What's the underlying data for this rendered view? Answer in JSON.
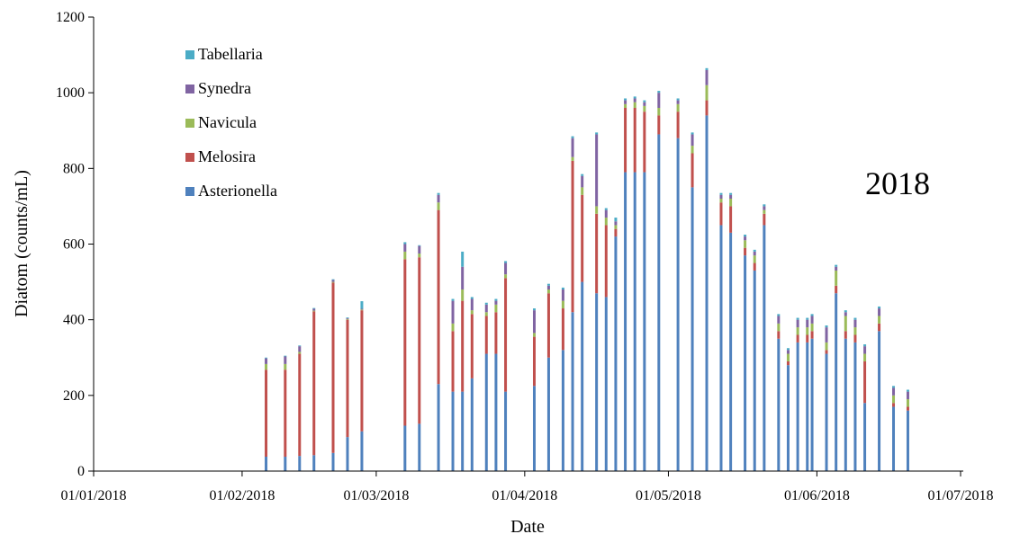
{
  "chart_data": {
    "type": "bar",
    "stacked": true,
    "title": "",
    "annotation": "2018",
    "xlabel": "Date",
    "ylabel": "Diatom (counts/mL)",
    "ylim": [
      0,
      1200
    ],
    "yticks": [
      0,
      200,
      400,
      600,
      800,
      1000,
      1200
    ],
    "xlim": [
      "2018-01-01",
      "2018-07-01"
    ],
    "xticks": [
      {
        "date": "2018-01-01",
        "label": "01/01/2018"
      },
      {
        "date": "2018-02-01",
        "label": "01/02/2018"
      },
      {
        "date": "2018-03-01",
        "label": "01/03/2018"
      },
      {
        "date": "2018-04-01",
        "label": "01/04/2018"
      },
      {
        "date": "2018-05-01",
        "label": "01/05/2018"
      },
      {
        "date": "2018-06-01",
        "label": "01/06/2018"
      },
      {
        "date": "2018-07-01",
        "label": "01/07/2018"
      }
    ],
    "grid": false,
    "legend_position": "top-left",
    "legend_order": [
      "Tabellaria",
      "Synedra",
      "Navicula",
      "Melosira",
      "Asterionella"
    ],
    "colors": {
      "Asterionella": "#4f81bd",
      "Melosira": "#c0504d",
      "Navicula": "#9bbb59",
      "Synedra": "#8064a2",
      "Tabellaria": "#4bacc6"
    },
    "x": [
      "2018-02-06",
      "2018-02-10",
      "2018-02-13",
      "2018-02-16",
      "2018-02-20",
      "2018-02-23",
      "2018-02-26",
      "2018-03-07",
      "2018-03-10",
      "2018-03-14",
      "2018-03-17",
      "2018-03-19",
      "2018-03-21",
      "2018-03-24",
      "2018-03-26",
      "2018-03-28",
      "2018-04-03",
      "2018-04-06",
      "2018-04-09",
      "2018-04-11",
      "2018-04-13",
      "2018-04-16",
      "2018-04-18",
      "2018-04-20",
      "2018-04-22",
      "2018-04-24",
      "2018-04-26",
      "2018-04-29",
      "2018-05-03",
      "2018-05-06",
      "2018-05-09",
      "2018-05-12",
      "2018-05-14",
      "2018-05-17",
      "2018-05-19",
      "2018-05-21",
      "2018-05-24",
      "2018-05-26",
      "2018-05-28",
      "2018-05-30",
      "2018-05-31",
      "2018-06-03",
      "2018-06-05",
      "2018-06-07",
      "2018-06-09",
      "2018-06-11",
      "2018-06-14",
      "2018-06-17",
      "2018-06-20",
      "2018-06-23",
      "2018-06-25",
      "2018-06-27",
      "2018-06-29",
      "2018-06-30",
      "2018-06-26",
      "2018-06-30",
      "2018-06-30",
      "2018-06-30",
      "2018-06-30",
      "2018-06-30",
      "2018-06-30",
      "2018-06-30",
      "2018-06-30"
    ],
    "series": [
      {
        "name": "Asterionella",
        "values": [
          38,
          38,
          40,
          42,
          48,
          90,
          105,
          120,
          125,
          230,
          210,
          210,
          245,
          310,
          310,
          210,
          225,
          300,
          320,
          420,
          500,
          470,
          460,
          620,
          790,
          790,
          790,
          890,
          880,
          750,
          940,
          650,
          630,
          570,
          530,
          650,
          350,
          280,
          340,
          340,
          350,
          310,
          470,
          350,
          340,
          180,
          370,
          170,
          160,
          0,
          0,
          0,
          0,
          0,
          0,
          0,
          0,
          0,
          0,
          0,
          0,
          0,
          0
        ]
      },
      {
        "name": "Melosira",
        "values": [
          230,
          230,
          270,
          380,
          450,
          310,
          320,
          440,
          440,
          460,
          160,
          240,
          170,
          100,
          110,
          300,
          130,
          170,
          110,
          400,
          230,
          210,
          190,
          20,
          170,
          170,
          160,
          50,
          70,
          90,
          40,
          60,
          70,
          20,
          20,
          30,
          20,
          10,
          20,
          20,
          20,
          10,
          20,
          20,
          20,
          110,
          20,
          10,
          10,
          0,
          0,
          0,
          0,
          0,
          0,
          0,
          0,
          0,
          0,
          0,
          0,
          0,
          0
        ]
      },
      {
        "name": "Navicula",
        "values": [
          15,
          15,
          5,
          2,
          2,
          2,
          2,
          20,
          10,
          20,
          20,
          30,
          10,
          10,
          20,
          10,
          10,
          10,
          20,
          10,
          20,
          20,
          20,
          10,
          10,
          15,
          15,
          20,
          20,
          20,
          40,
          10,
          20,
          20,
          20,
          10,
          20,
          20,
          20,
          20,
          20,
          20,
          40,
          40,
          20,
          20,
          20,
          20,
          20,
          0,
          0,
          0,
          0,
          0,
          0,
          0,
          0,
          0,
          0,
          0,
          0,
          0,
          0
        ]
      },
      {
        "name": "Synedra",
        "values": [
          15,
          20,
          15,
          5,
          5,
          2,
          2,
          20,
          20,
          20,
          60,
          60,
          30,
          20,
          10,
          30,
          60,
          10,
          30,
          50,
          30,
          190,
          20,
          10,
          10,
          10,
          10,
          40,
          10,
          30,
          40,
          10,
          10,
          10,
          10,
          10,
          20,
          10,
          20,
          20,
          20,
          40,
          10,
          10,
          20,
          20,
          20,
          20,
          20,
          0,
          0,
          0,
          0,
          0,
          0,
          0,
          0,
          0,
          0,
          0,
          0,
          0,
          0
        ]
      },
      {
        "name": "Tabellaria",
        "values": [
          2,
          2,
          2,
          2,
          2,
          2,
          20,
          5,
          2,
          5,
          5,
          40,
          5,
          5,
          5,
          5,
          5,
          5,
          5,
          5,
          5,
          5,
          5,
          10,
          5,
          5,
          5,
          5,
          5,
          5,
          5,
          5,
          5,
          5,
          5,
          5,
          5,
          5,
          5,
          5,
          5,
          5,
          5,
          5,
          5,
          5,
          5,
          5,
          5,
          0,
          0,
          0,
          0,
          0,
          0,
          0,
          0,
          0,
          0,
          0,
          0,
          0,
          0
        ]
      }
    ]
  }
}
